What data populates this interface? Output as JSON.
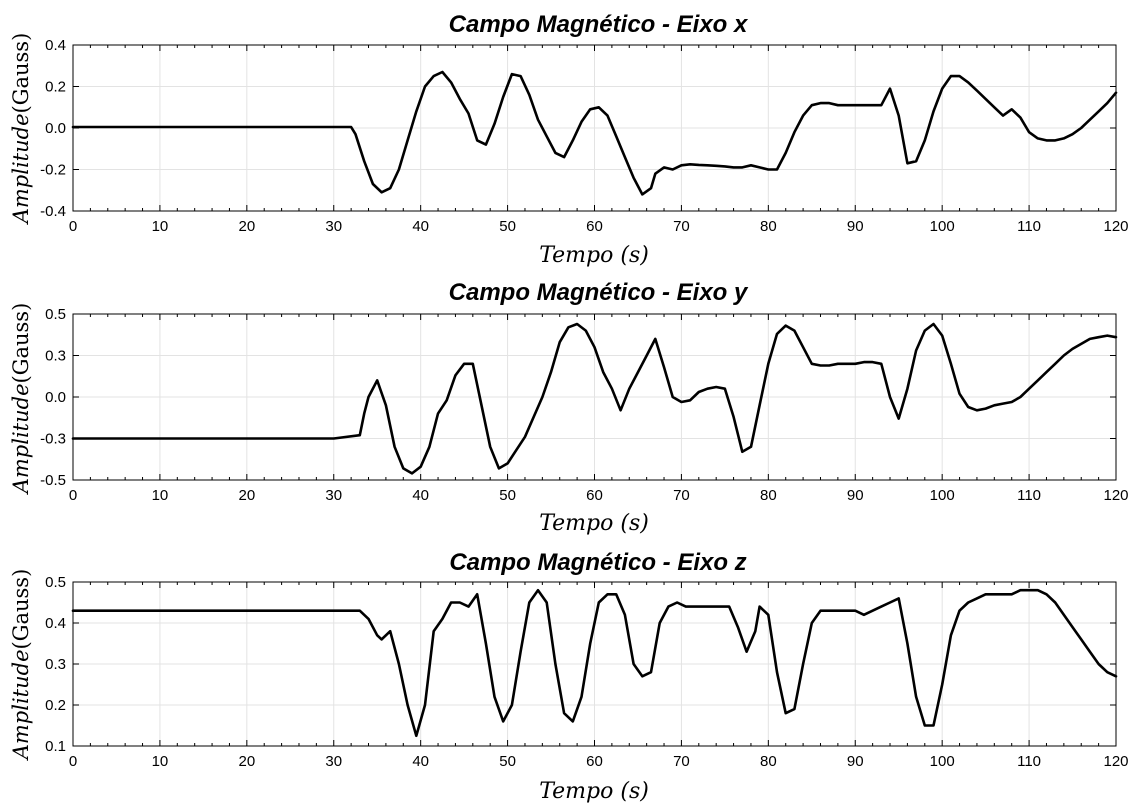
{
  "chart_data": [
    {
      "type": "line",
      "title": "Campo Magnético - Eixo x",
      "xlabel": "Tempo  (s)",
      "ylabel_italic": "Amplitude",
      "ylabel_unit": "(Gauss)",
      "xlim": [
        0,
        120
      ],
      "ylim": [
        -0.4,
        0.4
      ],
      "grid": true,
      "xticks": [
        0,
        10,
        20,
        30,
        40,
        50,
        60,
        70,
        80,
        90,
        100,
        110,
        120
      ],
      "yticks": [
        -0.4,
        -0.2,
        0.0,
        0.2,
        0.4
      ],
      "ytick_labels": [
        "-0.4",
        "-0.2",
        "0.0",
        "0.2",
        "0.4"
      ],
      "color": "#000000",
      "x": [
        0,
        32,
        32.5,
        33.5,
        34.5,
        35.5,
        36.5,
        37.5,
        38.5,
        39.5,
        40.5,
        41.5,
        42.5,
        43.5,
        44.5,
        45.5,
        46.5,
        47.5,
        48.5,
        49.5,
        50.5,
        51.5,
        52.5,
        53.5,
        54.5,
        55.5,
        56.5,
        57.5,
        58.5,
        59.5,
        60.5,
        61.5,
        62.5,
        63.5,
        64.5,
        65.5,
        66.5,
        67,
        68,
        69,
        70,
        71,
        72,
        73,
        74,
        75,
        76,
        77,
        78,
        79,
        80,
        81,
        82,
        83,
        84,
        85,
        86,
        87,
        88,
        89,
        90,
        91,
        92,
        93,
        94,
        95,
        96,
        97,
        98,
        99,
        100,
        101,
        102,
        103,
        104,
        105,
        106,
        107,
        108,
        109,
        110,
        111,
        112,
        113,
        114,
        115,
        116,
        117,
        118,
        119,
        120
      ],
      "y": [
        0.005,
        0.005,
        -0.03,
        -0.16,
        -0.27,
        -0.31,
        -0.29,
        -0.2,
        -0.06,
        0.08,
        0.2,
        0.25,
        0.27,
        0.22,
        0.14,
        0.07,
        -0.06,
        -0.08,
        0.02,
        0.15,
        0.26,
        0.25,
        0.16,
        0.04,
        -0.04,
        -0.12,
        -0.14,
        -0.06,
        0.03,
        0.09,
        0.1,
        0.06,
        -0.04,
        -0.14,
        -0.24,
        -0.32,
        -0.29,
        -0.22,
        -0.19,
        -0.2,
        -0.18,
        -0.175,
        -0.178,
        -0.18,
        -0.182,
        -0.185,
        -0.19,
        -0.19,
        -0.18,
        -0.19,
        -0.2,
        -0.2,
        -0.12,
        -0.02,
        0.06,
        0.11,
        0.12,
        0.12,
        0.11,
        0.11,
        0.11,
        0.11,
        0.11,
        0.11,
        0.19,
        0.06,
        -0.17,
        -0.16,
        -0.06,
        0.08,
        0.19,
        0.25,
        0.25,
        0.22,
        0.18,
        0.14,
        0.1,
        0.06,
        0.09,
        0.05,
        -0.02,
        -0.05,
        -0.06,
        -0.06,
        -0.05,
        -0.03,
        0.0,
        0.04,
        0.08,
        0.12,
        0.17
      ]
    },
    {
      "type": "line",
      "title": "Campo Magnético - Eixo y",
      "xlabel": "Tempo  (s)",
      "ylabel_italic": "Amplitude",
      "ylabel_unit": "(Gauss)",
      "xlim": [
        0,
        120
      ],
      "ylim": [
        -0.5,
        0.5
      ],
      "grid": true,
      "xticks": [
        0,
        10,
        20,
        30,
        40,
        50,
        60,
        70,
        80,
        90,
        100,
        110,
        120
      ],
      "yticks": [
        -0.5,
        -0.25,
        0.0,
        0.25,
        0.5
      ],
      "ytick_labels": [
        "-0.5",
        "-0.3",
        "0.0",
        "0.3",
        "0.5"
      ],
      "color": "#000000",
      "x": [
        0,
        30,
        33,
        33.5,
        34,
        35,
        36,
        37,
        38,
        39,
        40,
        41,
        42,
        43,
        44,
        45,
        46,
        47,
        48,
        49,
        50,
        51,
        52,
        53,
        54,
        55,
        56,
        57,
        58,
        59,
        60,
        61,
        62,
        63,
        64,
        65,
        66,
        67,
        68,
        69,
        70,
        71,
        72,
        73,
        74,
        75,
        76,
        77,
        78,
        79,
        80,
        81,
        82,
        83,
        84,
        85,
        86,
        87,
        88,
        89,
        90,
        91,
        92,
        93,
        94,
        95,
        96,
        97,
        98,
        99,
        100,
        101,
        102,
        103,
        104,
        105,
        106,
        107,
        108,
        109,
        110,
        111,
        112,
        113,
        114,
        115,
        116,
        117,
        118,
        119,
        120
      ],
      "y": [
        -0.25,
        -0.25,
        -0.23,
        -0.1,
        0.0,
        0.1,
        -0.05,
        -0.3,
        -0.43,
        -0.46,
        -0.42,
        -0.3,
        -0.1,
        -0.02,
        0.13,
        0.2,
        0.2,
        -0.05,
        -0.3,
        -0.43,
        -0.4,
        -0.32,
        -0.24,
        -0.12,
        0.0,
        0.15,
        0.33,
        0.42,
        0.44,
        0.4,
        0.3,
        0.15,
        0.05,
        -0.08,
        0.05,
        0.15,
        0.25,
        0.35,
        0.18,
        0.0,
        -0.03,
        -0.02,
        0.03,
        0.05,
        0.06,
        0.05,
        -0.12,
        -0.33,
        -0.3,
        -0.05,
        0.2,
        0.38,
        0.43,
        0.4,
        0.3,
        0.2,
        0.19,
        0.19,
        0.2,
        0.2,
        0.2,
        0.21,
        0.21,
        0.2,
        0.0,
        -0.13,
        0.05,
        0.28,
        0.4,
        0.44,
        0.37,
        0.2,
        0.02,
        -0.06,
        -0.08,
        -0.07,
        -0.05,
        -0.04,
        -0.03,
        0.0,
        0.05,
        0.1,
        0.15,
        0.2,
        0.25,
        0.29,
        0.32,
        0.35,
        0.36,
        0.37,
        0.36
      ]
    },
    {
      "type": "line",
      "title": "Campo Magnético - Eixo z",
      "xlabel": "Tempo  (s)",
      "ylabel_italic": "Amplitude",
      "ylabel_unit": "(Gauss)",
      "xlim": [
        0,
        120
      ],
      "ylim": [
        0.1,
        0.5
      ],
      "grid": true,
      "xticks": [
        0,
        10,
        20,
        30,
        40,
        50,
        60,
        70,
        80,
        90,
        100,
        110,
        120
      ],
      "yticks": [
        0.1,
        0.2,
        0.3,
        0.4,
        0.5
      ],
      "ytick_labels": [
        "0.1",
        "0.2",
        "0.3",
        "0.4",
        "0.5"
      ],
      "color": "#000000",
      "x": [
        0,
        32,
        33,
        34,
        35,
        35.5,
        36.5,
        37.5,
        38.5,
        39.5,
        40.5,
        41.5,
        42.5,
        43.5,
        44.5,
        45.5,
        46.5,
        47.5,
        48.5,
        49.5,
        50.5,
        51.5,
        52.5,
        53.5,
        54.5,
        55.5,
        56.5,
        57.5,
        58.5,
        59.5,
        60.5,
        61.5,
        62.5,
        63.5,
        64.5,
        65.5,
        66.5,
        67.5,
        68.5,
        69.5,
        70.5,
        71.5,
        72.5,
        73.5,
        74.5,
        75.5,
        76.5,
        77.5,
        78.5,
        79,
        80,
        81,
        82,
        83,
        84,
        85,
        86,
        87,
        88,
        89,
        90,
        91,
        92,
        93,
        94,
        95,
        96,
        97,
        98,
        99,
        100,
        101,
        102,
        103,
        104,
        105,
        106,
        107,
        108,
        109,
        110,
        111,
        112,
        113,
        114,
        115,
        116,
        117,
        118,
        119,
        120
      ],
      "y": [
        0.43,
        0.43,
        0.43,
        0.41,
        0.37,
        0.36,
        0.38,
        0.3,
        0.2,
        0.125,
        0.2,
        0.38,
        0.41,
        0.45,
        0.45,
        0.44,
        0.47,
        0.35,
        0.22,
        0.16,
        0.2,
        0.33,
        0.45,
        0.48,
        0.45,
        0.3,
        0.18,
        0.16,
        0.22,
        0.35,
        0.45,
        0.47,
        0.47,
        0.42,
        0.3,
        0.27,
        0.28,
        0.4,
        0.44,
        0.45,
        0.44,
        0.44,
        0.44,
        0.44,
        0.44,
        0.44,
        0.39,
        0.33,
        0.38,
        0.44,
        0.42,
        0.28,
        0.18,
        0.19,
        0.3,
        0.4,
        0.43,
        0.43,
        0.43,
        0.43,
        0.43,
        0.42,
        0.43,
        0.44,
        0.45,
        0.46,
        0.35,
        0.22,
        0.15,
        0.15,
        0.25,
        0.37,
        0.43,
        0.45,
        0.46,
        0.47,
        0.47,
        0.47,
        0.47,
        0.48,
        0.48,
        0.48,
        0.47,
        0.45,
        0.42,
        0.39,
        0.36,
        0.33,
        0.3,
        0.28,
        0.27
      ]
    }
  ]
}
